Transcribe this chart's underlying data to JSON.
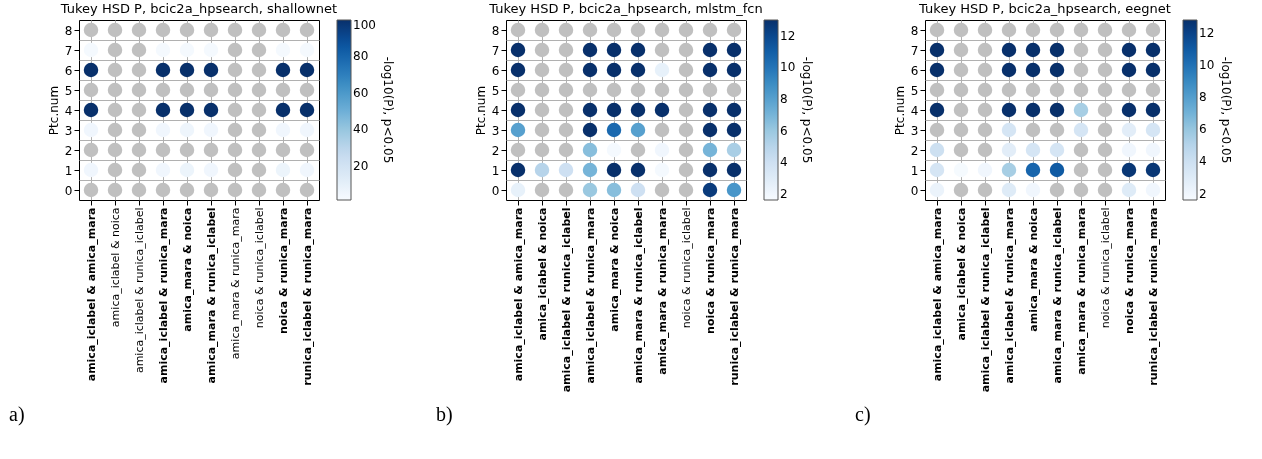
{
  "chart_data": [
    {
      "type": "scatter",
      "title": "Tukey HSD P, bcic2a_hpsearch, shallownet",
      "ylabel": "Ptc.num",
      "clabel": "-log10(P), p<0.05",
      "annotations": [
        "a)"
      ],
      "grid": true,
      "marker": "circle",
      "categories": [
        "amica_iclabel & amica_mara",
        "amica_iclabel & noica",
        "amica_iclabel & runica_iclabel",
        "amica_iclabel & runica_mara",
        "amica_mara & noica",
        "amica_mara & runica_iclabel",
        "amica_mara & runica_mara",
        "noica & runica_iclabel",
        "noica & runica_mara",
        "runica_iclabel & runica_mara"
      ],
      "ylim": [
        -0.5,
        8.5
      ],
      "yticks": [
        0,
        1,
        2,
        3,
        4,
        5,
        6,
        7,
        8
      ],
      "clim": [
        1.3,
        100
      ],
      "cticks": [
        20,
        40,
        60,
        80,
        100
      ],
      "series": [
        {
          "color": "#c0c0c0",
          "values": [
            8,
            8,
            8,
            8,
            8,
            8,
            8,
            8,
            8,
            8
          ]
        },
        {
          "color": "#c0c0c0",
          "values": [
            null,
            7,
            7,
            null,
            null,
            null,
            7,
            7,
            null,
            null
          ]
        },
        {
          "values": [
            7,
            null,
            null,
            7,
            7,
            7,
            null,
            null,
            7,
            7
          ],
          "cvalues": [
            3,
            null,
            null,
            3,
            3,
            3,
            null,
            null,
            3,
            3
          ]
        },
        {
          "color": "#c0c0c0",
          "values": [
            null,
            6,
            6,
            null,
            null,
            null,
            6,
            6,
            null,
            null
          ]
        },
        {
          "values": [
            6,
            null,
            null,
            6,
            6,
            6,
            null,
            null,
            6,
            6
          ],
          "cvalues": [
            100,
            null,
            null,
            100,
            100,
            100,
            null,
            null,
            100,
            100
          ]
        },
        {
          "color": "#c0c0c0",
          "values": [
            5,
            5,
            5,
            5,
            5,
            5,
            5,
            5,
            5,
            5
          ]
        },
        {
          "color": "#c0c0c0",
          "values": [
            null,
            4,
            4,
            null,
            null,
            null,
            4,
            4,
            null,
            null
          ]
        },
        {
          "values": [
            4,
            null,
            null,
            4,
            4,
            4,
            null,
            null,
            4,
            4
          ],
          "cvalues": [
            100,
            null,
            null,
            100,
            100,
            100,
            null,
            null,
            100,
            100
          ]
        },
        {
          "color": "#c0c0c0",
          "values": [
            null,
            3,
            3,
            null,
            null,
            null,
            3,
            3,
            null,
            null
          ]
        },
        {
          "values": [
            3,
            null,
            null,
            3,
            null,
            3,
            null,
            null,
            3,
            3
          ],
          "cvalues": [
            5,
            null,
            null,
            5,
            null,
            5,
            null,
            null,
            5,
            5
          ]
        },
        {
          "values": [
            null,
            null,
            null,
            null,
            3,
            null,
            null,
            null,
            null,
            null
          ],
          "cvalues": [
            null,
            null,
            null,
            null,
            6,
            null,
            null,
            null,
            null,
            null
          ]
        },
        {
          "color": "#c0c0c0",
          "values": [
            2,
            2,
            2,
            2,
            2,
            2,
            2,
            2,
            2,
            2
          ]
        },
        {
          "color": "#c0c0c0",
          "values": [
            null,
            1,
            1,
            null,
            null,
            null,
            1,
            1,
            null,
            null
          ]
        },
        {
          "values": [
            1,
            null,
            null,
            1,
            null,
            1,
            null,
            null,
            null,
            1
          ],
          "cvalues": [
            5,
            null,
            null,
            5,
            null,
            5,
            null,
            null,
            null,
            5
          ]
        },
        {
          "values": [
            null,
            null,
            null,
            null,
            1,
            null,
            null,
            null,
            1,
            null
          ],
          "cvalues": [
            null,
            null,
            null,
            null,
            7,
            null,
            null,
            null,
            7,
            null
          ]
        },
        {
          "color": "#c0c0c0",
          "values": [
            0,
            0,
            0,
            0,
            0,
            0,
            0,
            0,
            0,
            0
          ]
        }
      ]
    },
    {
      "type": "scatter",
      "title": "Tukey HSD P, bcic2a_hpsearch, mlstm_fcn",
      "ylabel": "Ptc.num",
      "clabel": "-log10(P), p<0.05",
      "annotations": [
        "b)"
      ],
      "grid": true,
      "marker": "circle",
      "categories": [
        "amica_iclabel & amica_mara",
        "amica_iclabel & noica",
        "amica_iclabel & runica_iclabel",
        "amica_iclabel & runica_mara",
        "amica_mara & noica",
        "amica_mara & runica_iclabel",
        "amica_mara & runica_mara",
        "noica & runica_iclabel",
        "noica & runica_mara",
        "runica_iclabel & runica_mara"
      ],
      "ylim": [
        -0.5,
        8.5
      ],
      "yticks": [
        0,
        1,
        2,
        3,
        4,
        5,
        6,
        7,
        8
      ],
      "clim": [
        1.6,
        13
      ],
      "cticks": [
        2,
        4,
        6,
        8,
        10,
        12
      ],
      "series": [
        {
          "color": "#c0c0c0",
          "values": [
            8,
            8,
            8,
            8,
            8,
            8,
            8,
            8,
            8,
            8
          ]
        },
        {
          "color": "#c0c0c0",
          "values": [
            null,
            7,
            7,
            null,
            null,
            null,
            7,
            7,
            null,
            null
          ]
        },
        {
          "values": [
            7,
            null,
            null,
            7,
            7,
            7,
            null,
            null,
            7,
            7
          ],
          "cvalues": [
            13,
            null,
            null,
            13,
            13,
            13,
            null,
            null,
            13,
            13
          ]
        },
        {
          "color": "#c0c0c0",
          "values": [
            null,
            6,
            6,
            null,
            null,
            null,
            null,
            6,
            null,
            null
          ]
        },
        {
          "values": [
            6,
            null,
            null,
            6,
            6,
            6,
            null,
            null,
            6,
            6
          ],
          "cvalues": [
            13,
            null,
            null,
            13,
            13,
            13,
            null,
            null,
            13,
            13
          ]
        },
        {
          "values": [
            null,
            null,
            null,
            null,
            null,
            null,
            6,
            null,
            null,
            null
          ],
          "cvalues": [
            null,
            null,
            null,
            null,
            null,
            null,
            2.5,
            null,
            null,
            null
          ]
        },
        {
          "color": "#c0c0c0",
          "values": [
            5,
            5,
            5,
            5,
            5,
            5,
            5,
            5,
            5,
            5
          ]
        },
        {
          "color": "#c0c0c0",
          "values": [
            null,
            4,
            4,
            null,
            null,
            null,
            null,
            4,
            null,
            null
          ]
        },
        {
          "values": [
            4,
            null,
            null,
            4,
            4,
            4,
            4,
            null,
            4,
            4
          ],
          "cvalues": [
            13,
            null,
            null,
            13,
            13,
            13,
            13,
            null,
            13,
            13
          ]
        },
        {
          "color": "#c0c0c0",
          "values": [
            null,
            3,
            3,
            null,
            null,
            null,
            3,
            3,
            null,
            null
          ]
        },
        {
          "values": [
            3,
            null,
            null,
            null,
            null,
            3,
            null,
            null,
            null,
            null
          ],
          "cvalues": [
            8,
            null,
            null,
            null,
            null,
            8,
            null,
            null,
            null,
            null
          ]
        },
        {
          "values": [
            null,
            null,
            null,
            3,
            null,
            null,
            null,
            null,
            3,
            3
          ],
          "cvalues": [
            null,
            null,
            null,
            13,
            null,
            null,
            null,
            null,
            13,
            13
          ]
        },
        {
          "values": [
            null,
            null,
            null,
            null,
            3,
            null,
            null,
            null,
            null,
            null
          ],
          "cvalues": [
            null,
            null,
            null,
            null,
            10.5,
            null,
            null,
            null,
            null,
            null
          ]
        },
        {
          "color": "#c0c0c0",
          "values": [
            2,
            2,
            2,
            null,
            null,
            2,
            null,
            2,
            null,
            null
          ]
        },
        {
          "values": [
            null,
            null,
            null,
            2,
            null,
            null,
            null,
            null,
            null,
            null
          ],
          "cvalues": [
            null,
            null,
            null,
            6.5,
            null,
            null,
            null,
            null,
            null,
            null
          ]
        },
        {
          "values": [
            null,
            null,
            null,
            null,
            2,
            null,
            null,
            null,
            null,
            null
          ],
          "cvalues": [
            null,
            null,
            null,
            null,
            1.8,
            null,
            null,
            null,
            null,
            null
          ]
        },
        {
          "values": [
            null,
            null,
            null,
            null,
            null,
            null,
            2,
            null,
            null,
            null
          ],
          "cvalues": [
            null,
            null,
            null,
            null,
            null,
            null,
            2,
            null,
            null,
            null
          ]
        },
        {
          "values": [
            null,
            null,
            null,
            null,
            null,
            null,
            null,
            null,
            2,
            null
          ],
          "cvalues": [
            null,
            null,
            null,
            null,
            null,
            null,
            null,
            null,
            7,
            null
          ]
        },
        {
          "values": [
            null,
            null,
            null,
            null,
            null,
            null,
            null,
            null,
            null,
            2
          ],
          "cvalues": [
            null,
            null,
            null,
            null,
            null,
            null,
            null,
            null,
            null,
            5.5
          ]
        },
        {
          "color": "#c0c0c0",
          "values": [
            null,
            null,
            null,
            null,
            null,
            null,
            null,
            1,
            null,
            null
          ]
        },
        {
          "values": [
            1,
            null,
            null,
            null,
            1,
            1,
            null,
            null,
            1,
            1
          ],
          "cvalues": [
            13,
            null,
            null,
            null,
            13,
            13,
            null,
            null,
            13,
            13
          ]
        },
        {
          "values": [
            null,
            1,
            null,
            null,
            null,
            null,
            null,
            null,
            null,
            null
          ],
          "cvalues": [
            null,
            5,
            null,
            null,
            null,
            null,
            null,
            null,
            null,
            null
          ]
        },
        {
          "values": [
            null,
            null,
            1,
            null,
            null,
            null,
            null,
            null,
            null,
            null
          ],
          "cvalues": [
            null,
            null,
            4,
            null,
            null,
            null,
            null,
            null,
            null,
            null
          ]
        },
        {
          "values": [
            null,
            null,
            null,
            1,
            null,
            null,
            null,
            null,
            null,
            null
          ],
          "cvalues": [
            null,
            null,
            null,
            7,
            null,
            null,
            null,
            null,
            null,
            null
          ]
        },
        {
          "values": [
            null,
            null,
            null,
            null,
            null,
            null,
            1,
            null,
            null,
            null
          ],
          "cvalues": [
            null,
            null,
            null,
            null,
            null,
            null,
            1.8,
            null,
            null,
            null
          ]
        },
        {
          "color": "#c0c0c0",
          "values": [
            null,
            0,
            0,
            null,
            null,
            null,
            0,
            0,
            null,
            null
          ]
        },
        {
          "values": [
            0,
            null,
            null,
            null,
            null,
            null,
            null,
            null,
            null,
            null
          ],
          "cvalues": [
            2.5,
            null,
            null,
            null,
            null,
            null,
            null,
            null,
            null,
            null
          ]
        },
        {
          "values": [
            null,
            null,
            null,
            0,
            null,
            null,
            null,
            null,
            null,
            null
          ],
          "cvalues": [
            null,
            null,
            null,
            6,
            null,
            null,
            null,
            null,
            null,
            null
          ]
        },
        {
          "values": [
            null,
            null,
            null,
            null,
            0,
            null,
            null,
            null,
            null,
            null
          ],
          "cvalues": [
            null,
            null,
            null,
            null,
            6.5,
            null,
            null,
            null,
            null,
            null
          ]
        },
        {
          "values": [
            null,
            null,
            null,
            null,
            null,
            0,
            null,
            null,
            null,
            null
          ],
          "cvalues": [
            null,
            null,
            null,
            null,
            null,
            4,
            null,
            null,
            null,
            null
          ]
        },
        {
          "values": [
            null,
            null,
            null,
            null,
            null,
            null,
            null,
            null,
            0,
            null
          ],
          "cvalues": [
            null,
            null,
            null,
            null,
            null,
            null,
            null,
            null,
            12.5,
            null
          ]
        },
        {
          "values": [
            null,
            null,
            null,
            null,
            null,
            null,
            null,
            null,
            null,
            0
          ],
          "cvalues": [
            null,
            null,
            null,
            null,
            null,
            null,
            null,
            null,
            null,
            8.5
          ]
        }
      ]
    },
    {
      "type": "scatter",
      "title": "Tukey HSD P, bcic2a_hpsearch, eegnet",
      "ylabel": "Ptc.num",
      "clabel": "-log10(P), p<0.05",
      "annotations": [
        "c)"
      ],
      "grid": true,
      "marker": "circle",
      "categories": [
        "amica_iclabel & amica_mara",
        "amica_iclabel & noica",
        "amica_iclabel & runica_iclabel",
        "amica_iclabel & runica_mara",
        "amica_mara & noica",
        "amica_mara & runica_iclabel",
        "amica_mara & runica_mara",
        "noica & runica_iclabel",
        "noica & runica_mara",
        "runica_iclabel & runica_mara"
      ],
      "ylim": [
        -0.5,
        8.5
      ],
      "yticks": [
        0,
        1,
        2,
        3,
        4,
        5,
        6,
        7,
        8
      ],
      "clim": [
        1.6,
        12.8
      ],
      "cticks": [
        2,
        4,
        6,
        8,
        10,
        12
      ],
      "series": [
        {
          "color": "#c0c0c0",
          "values": [
            8,
            8,
            8,
            8,
            8,
            8,
            8,
            8,
            8,
            8
          ]
        },
        {
          "color": "#c0c0c0",
          "values": [
            null,
            7,
            7,
            null,
            null,
            null,
            7,
            7,
            null,
            null
          ]
        },
        {
          "values": [
            7,
            null,
            null,
            7,
            7,
            7,
            null,
            null,
            7,
            7
          ],
          "cvalues": [
            12.8,
            null,
            null,
            12.8,
            12.8,
            12.8,
            null,
            null,
            12.8,
            12.8
          ]
        },
        {
          "color": "#c0c0c0",
          "values": [
            null,
            6,
            6,
            null,
            null,
            null,
            6,
            6,
            null,
            null
          ]
        },
        {
          "values": [
            6,
            null,
            null,
            6,
            6,
            6,
            null,
            null,
            6,
            6
          ],
          "cvalues": [
            12.8,
            null,
            null,
            12.8,
            12.8,
            12.8,
            null,
            null,
            12.8,
            12.8
          ]
        },
        {
          "color": "#c0c0c0",
          "values": [
            5,
            5,
            5,
            5,
            5,
            5,
            5,
            5,
            5,
            5
          ]
        },
        {
          "color": "#c0c0c0",
          "values": [
            null,
            4,
            4,
            null,
            null,
            null,
            null,
            4,
            null,
            null
          ]
        },
        {
          "values": [
            4,
            null,
            null,
            4,
            4,
            4,
            null,
            null,
            4,
            4
          ],
          "cvalues": [
            12.8,
            null,
            null,
            12.8,
            12.8,
            12.8,
            null,
            null,
            12.8,
            12.8
          ]
        },
        {
          "values": [
            null,
            null,
            null,
            null,
            null,
            null,
            4,
            null,
            null,
            null
          ],
          "cvalues": [
            null,
            null,
            null,
            null,
            null,
            null,
            5.5,
            null,
            null,
            null
          ]
        },
        {
          "color": "#c0c0c0",
          "values": [
            3,
            3,
            3,
            null,
            3,
            3,
            null,
            3,
            null,
            null
          ]
        },
        {
          "values": [
            null,
            null,
            null,
            3,
            null,
            null,
            3,
            null,
            null,
            3
          ],
          "cvalues": [
            null,
            null,
            null,
            3.5,
            null,
            null,
            3.5,
            null,
            null,
            3.5
          ]
        },
        {
          "values": [
            null,
            null,
            null,
            null,
            null,
            null,
            null,
            null,
            3,
            null
          ],
          "cvalues": [
            null,
            null,
            null,
            null,
            null,
            null,
            null,
            null,
            2.8,
            null
          ]
        },
        {
          "color": "#c0c0c0",
          "values": [
            null,
            2,
            2,
            null,
            null,
            null,
            2,
            2,
            null,
            null
          ]
        },
        {
          "values": [
            2,
            null,
            null,
            null,
            null,
            null,
            null,
            null,
            null,
            null
          ],
          "cvalues": [
            4,
            null,
            null,
            null,
            null,
            null,
            null,
            null,
            null,
            null
          ]
        },
        {
          "values": [
            null,
            null,
            null,
            2,
            null,
            null,
            null,
            null,
            null,
            null
          ],
          "cvalues": [
            null,
            null,
            null,
            2.8,
            null,
            null,
            null,
            null,
            null,
            null
          ]
        },
        {
          "values": [
            null,
            null,
            null,
            null,
            2,
            2,
            null,
            null,
            null,
            null
          ],
          "cvalues": [
            null,
            null,
            null,
            null,
            3.5,
            3.5,
            null,
            null,
            null,
            null
          ]
        },
        {
          "values": [
            null,
            null,
            null,
            null,
            null,
            null,
            null,
            null,
            2,
            2
          ],
          "cvalues": [
            null,
            null,
            null,
            null,
            null,
            null,
            null,
            null,
            2,
            2
          ]
        },
        {
          "color": "#c0c0c0",
          "values": [
            null,
            null,
            null,
            null,
            null,
            null,
            1,
            1,
            null,
            null
          ]
        },
        {
          "values": [
            1,
            null,
            null,
            null,
            null,
            null,
            null,
            null,
            null,
            null
          ],
          "cvalues": [
            3.5,
            null,
            null,
            null,
            null,
            null,
            null,
            null,
            null,
            null
          ]
        },
        {
          "values": [
            null,
            1,
            null,
            null,
            null,
            null,
            null,
            null,
            null,
            null
          ],
          "cvalues": [
            null,
            1.7,
            null,
            null,
            null,
            null,
            null,
            null,
            null,
            null
          ]
        },
        {
          "values": [
            null,
            null,
            1,
            null,
            null,
            null,
            null,
            null,
            null,
            null
          ],
          "cvalues": [
            null,
            null,
            2,
            null,
            null,
            null,
            null,
            null,
            null,
            null
          ]
        },
        {
          "values": [
            null,
            null,
            null,
            1,
            null,
            null,
            null,
            null,
            null,
            null
          ],
          "cvalues": [
            null,
            null,
            null,
            5.5,
            null,
            null,
            null,
            null,
            null,
            null
          ]
        },
        {
          "values": [
            null,
            null,
            null,
            null,
            1,
            null,
            null,
            null,
            null,
            null
          ],
          "cvalues": [
            null,
            null,
            null,
            null,
            10.5,
            null,
            null,
            null,
            null,
            null
          ]
        },
        {
          "values": [
            null,
            null,
            null,
            null,
            null,
            1,
            null,
            null,
            null,
            null
          ],
          "cvalues": [
            null,
            null,
            null,
            null,
            null,
            11,
            null,
            null,
            null,
            null
          ]
        },
        {
          "values": [
            null,
            null,
            null,
            null,
            null,
            null,
            null,
            null,
            1,
            1
          ],
          "cvalues": [
            null,
            null,
            null,
            null,
            null,
            null,
            null,
            null,
            12.5,
            12.5
          ]
        },
        {
          "color": "#c0c0c0",
          "values": [
            null,
            0,
            0,
            null,
            null,
            0,
            0,
            0,
            null,
            null
          ]
        },
        {
          "values": [
            0,
            null,
            null,
            null,
            null,
            null,
            null,
            null,
            null,
            null
          ],
          "cvalues": [
            2.3,
            null,
            null,
            null,
            null,
            null,
            null,
            null,
            null,
            null
          ]
        },
        {
          "values": [
            null,
            null,
            null,
            0,
            null,
            null,
            null,
            null,
            0,
            null
          ],
          "cvalues": [
            null,
            null,
            null,
            3,
            null,
            null,
            null,
            null,
            3,
            null
          ]
        },
        {
          "values": [
            null,
            null,
            null,
            null,
            0,
            null,
            null,
            null,
            null,
            0
          ],
          "cvalues": [
            null,
            null,
            null,
            null,
            2,
            null,
            null,
            null,
            null,
            2
          ]
        }
      ]
    }
  ]
}
